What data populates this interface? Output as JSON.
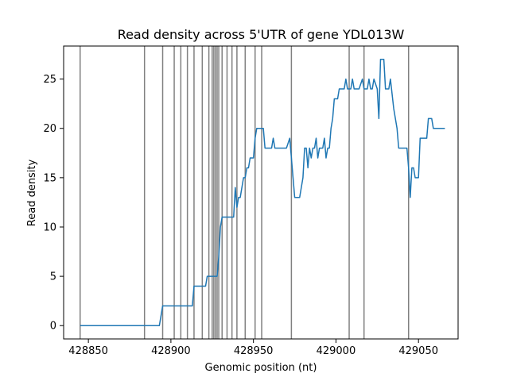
{
  "chart_data": {
    "type": "line",
    "title": "Read density across 5'UTR of gene YDL013W",
    "xlabel": "Genomic position (nt)",
    "ylabel": "Read density",
    "xlim": [
      428835,
      429074
    ],
    "ylim": [
      -1.35,
      28.35
    ],
    "xticks": [
      428850,
      428900,
      428950,
      429000,
      429050
    ],
    "yticks": [
      0,
      5,
      10,
      15,
      20,
      25
    ],
    "grid": false,
    "legend": "none",
    "vlines": [
      428845,
      428884,
      428895,
      428902,
      428906,
      428910,
      428914,
      428919,
      428923,
      428925,
      428926,
      428927,
      428928,
      428929,
      428931,
      428934,
      428937,
      428940,
      428945,
      428951,
      428955,
      428973,
      429008,
      429017,
      429044
    ],
    "series": [
      {
        "color": "#1f77b4",
        "points": [
          [
            428845,
            0
          ],
          [
            428893,
            0
          ],
          [
            428895,
            2
          ],
          [
            428913,
            2
          ],
          [
            428914,
            4
          ],
          [
            428921,
            4
          ],
          [
            428922,
            5
          ],
          [
            428928,
            5
          ],
          [
            428929,
            7
          ],
          [
            428930,
            10
          ],
          [
            428931,
            11
          ],
          [
            428938,
            11
          ],
          [
            428939,
            14
          ],
          [
            428940,
            12
          ],
          [
            428941,
            13
          ],
          [
            428942,
            13
          ],
          [
            428944,
            15
          ],
          [
            428945,
            15
          ],
          [
            428946,
            16
          ],
          [
            428947,
            16
          ],
          [
            428948,
            17
          ],
          [
            428950,
            17
          ],
          [
            428951,
            19
          ],
          [
            428952,
            20
          ],
          [
            428956,
            20
          ],
          [
            428957,
            18
          ],
          [
            428961,
            18
          ],
          [
            428962,
            19
          ],
          [
            428963,
            18
          ],
          [
            428970,
            18
          ],
          [
            428972,
            19
          ],
          [
            428973,
            17
          ],
          [
            428974,
            15
          ],
          [
            428975,
            13
          ],
          [
            428978,
            13
          ],
          [
            428980,
            15
          ],
          [
            428981,
            18
          ],
          [
            428982,
            18
          ],
          [
            428983,
            16
          ],
          [
            428984,
            18
          ],
          [
            428985,
            17
          ],
          [
            428986,
            18
          ],
          [
            428987,
            18
          ],
          [
            428988,
            19
          ],
          [
            428989,
            17
          ],
          [
            428990,
            18
          ],
          [
            428992,
            18
          ],
          [
            428993,
            19
          ],
          [
            428994,
            17
          ],
          [
            428995,
            18
          ],
          [
            428996,
            18
          ],
          [
            428997,
            20
          ],
          [
            428998,
            21
          ],
          [
            428999,
            23
          ],
          [
            429001,
            23
          ],
          [
            429002,
            24
          ],
          [
            429005,
            24
          ],
          [
            429006,
            25
          ],
          [
            429007,
            24
          ],
          [
            429009,
            24
          ],
          [
            429010,
            25
          ],
          [
            429011,
            24
          ],
          [
            429012,
            24
          ],
          [
            429013,
            24
          ],
          [
            429014,
            24
          ],
          [
            429016,
            25
          ],
          [
            429017,
            24
          ],
          [
            429018,
            24
          ],
          [
            429019,
            24
          ],
          [
            429020,
            25
          ],
          [
            429021,
            24
          ],
          [
            429022,
            24
          ],
          [
            429023,
            25
          ],
          [
            429025,
            24
          ],
          [
            429026,
            21
          ],
          [
            429027,
            27
          ],
          [
            429029,
            27
          ],
          [
            429030,
            24
          ],
          [
            429032,
            24
          ],
          [
            429033,
            25
          ],
          [
            429035,
            22
          ],
          [
            429036,
            21
          ],
          [
            429037,
            20
          ],
          [
            429038,
            18
          ],
          [
            429043,
            18
          ],
          [
            429044,
            16
          ],
          [
            429045,
            13
          ],
          [
            429046,
            16
          ],
          [
            429047,
            16
          ],
          [
            429048,
            15
          ],
          [
            429050,
            15
          ],
          [
            429051,
            19
          ],
          [
            429055,
            19
          ],
          [
            429056,
            21
          ],
          [
            429058,
            21
          ],
          [
            429059,
            20
          ],
          [
            429066,
            20
          ]
        ]
      }
    ]
  }
}
